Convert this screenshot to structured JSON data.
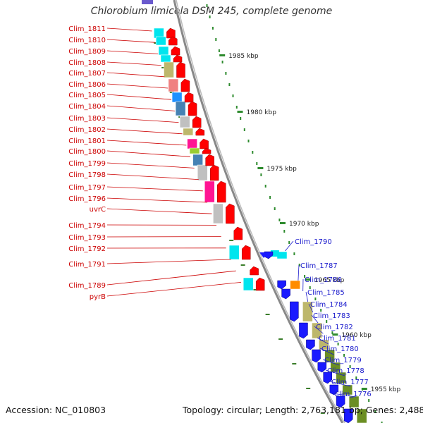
{
  "title": "Chlorobium limicola DSM 245, complete genome",
  "footer": {
    "accession": "Accession: NC_010803",
    "topology": "Topology: circular; Length: 2,763,181 bp; Genes: 2,488"
  },
  "ruler": {
    "unit": "kbp",
    "ticks": [
      {
        "label": "1985 kbp"
      },
      {
        "label": "1980 kbp"
      },
      {
        "label": "1975 kbp"
      },
      {
        "label": "1970 kbp"
      },
      {
        "label": "1965 kbp"
      },
      {
        "label": "1960 kbp"
      },
      {
        "label": "1955 kbp"
      }
    ]
  },
  "colors": {
    "forward_arrow": "#ff0000",
    "reverse_arrow": "#1a1aff",
    "forward_label": "#cc0000",
    "reverse_label": "#1a1acc",
    "backbone": "#888888",
    "ruler": "#2e8b2e"
  },
  "forward_genes": [
    {
      "label": "Clim_1811"
    },
    {
      "label": "Clim_1810"
    },
    {
      "label": "Clim_1809"
    },
    {
      "label": "Clim_1808"
    },
    {
      "label": "Clim_1807"
    },
    {
      "label": "Clim_1806"
    },
    {
      "label": "Clim_1805"
    },
    {
      "label": "Clim_1804"
    },
    {
      "label": "Clim_1803"
    },
    {
      "label": "Clim_1802"
    },
    {
      "label": "Clim_1801"
    },
    {
      "label": "Clim_1800"
    },
    {
      "label": "Clim_1799"
    },
    {
      "label": "Clim_1798"
    },
    {
      "label": "Clim_1797"
    },
    {
      "label": "Clim_1796"
    },
    {
      "label": "uvrC"
    },
    {
      "label": "Clim_1794"
    },
    {
      "label": "Clim_1793"
    },
    {
      "label": "Clim_1792"
    },
    {
      "label": "Clim_1791"
    },
    {
      "label": "Clim_1789"
    },
    {
      "label": "pyrB"
    }
  ],
  "reverse_genes": [
    {
      "label": "Clim_1790"
    },
    {
      "label": "Clim_1787"
    },
    {
      "label": "Clim_1786"
    },
    {
      "label": "Clim_1785"
    },
    {
      "label": "Clim_1784"
    },
    {
      "label": "Clim_1783"
    },
    {
      "label": "Clim_1782"
    },
    {
      "label": "Clim_1781"
    },
    {
      "label": "Clim_1780"
    },
    {
      "label": "Clim_1779"
    },
    {
      "label": "Clim_1778"
    },
    {
      "label": "Clim_1777"
    },
    {
      "label": "Clim_1776"
    }
  ],
  "function_colors": [
    "#00e5ee",
    "#bdb76b",
    "#f08080",
    "#1e90ff",
    "#4682b4",
    "#c0c0c0",
    "#ff1493",
    "#9acd32",
    "#6b8e23",
    "#ff8c00"
  ]
}
